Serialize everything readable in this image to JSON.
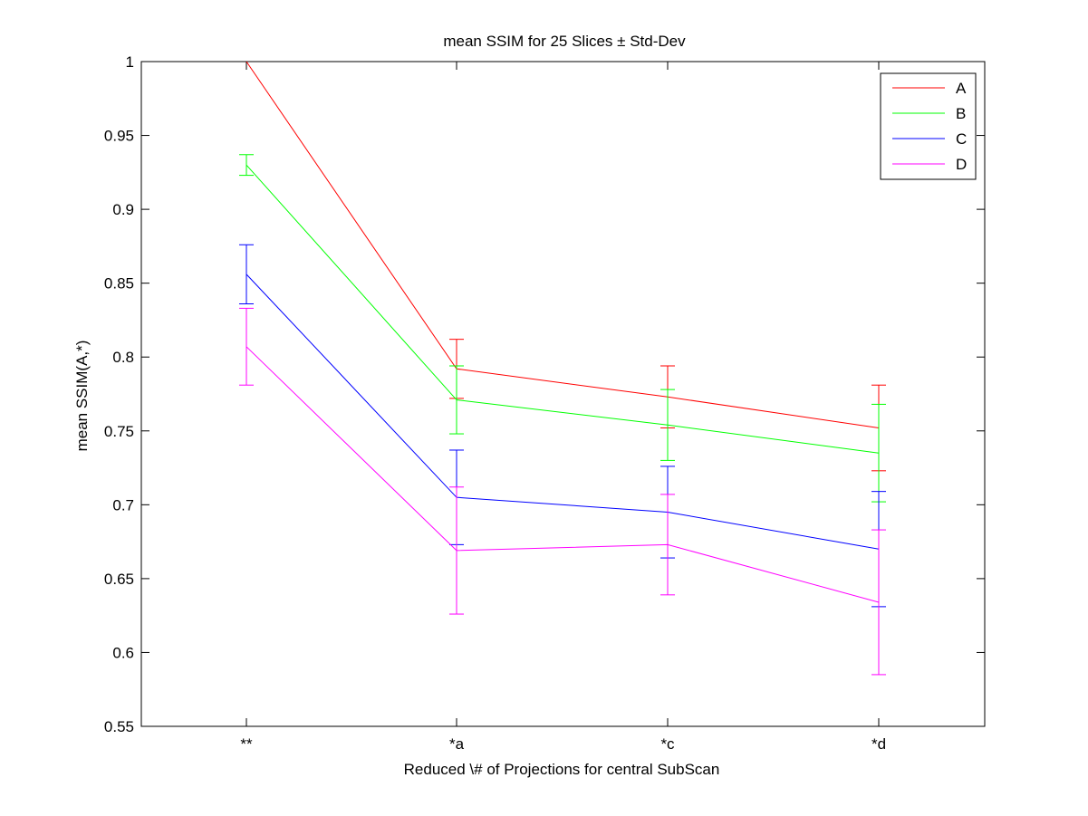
{
  "chart_data": {
    "type": "line",
    "title": "mean SSIM for 25 Slices ± Std-Dev",
    "xlabel": "Reduced \\# of Projections for central SubScan",
    "ylabel": "mean SSIM(A,*)",
    "categories": [
      "**",
      "*a",
      "*c",
      "*d"
    ],
    "ylim": [
      0.55,
      1
    ],
    "yticks": [
      "0.55",
      "0.6",
      "0.65",
      "0.7",
      "0.75",
      "0.8",
      "0.85",
      "0.9",
      "0.95",
      "1"
    ],
    "grid": false,
    "legend_position": "top-right",
    "series": [
      {
        "name": "A",
        "color": "#ff0000",
        "values": [
          1.0,
          0.792,
          0.773,
          0.752
        ],
        "errors": [
          null,
          0.02,
          0.021,
          0.029
        ]
      },
      {
        "name": "B",
        "color": "#00ff00",
        "values": [
          0.93,
          0.771,
          0.754,
          0.735
        ],
        "errors": [
          0.007,
          0.023,
          0.024,
          0.033
        ]
      },
      {
        "name": "C",
        "color": "#0000ff",
        "values": [
          0.856,
          0.705,
          0.695,
          0.67
        ],
        "errors": [
          0.02,
          0.032,
          0.031,
          0.039
        ]
      },
      {
        "name": "D",
        "color": "#ff00ff",
        "values": [
          0.807,
          0.669,
          0.673,
          0.634
        ],
        "errors": [
          0.026,
          0.043,
          0.034,
          0.049
        ]
      }
    ]
  }
}
